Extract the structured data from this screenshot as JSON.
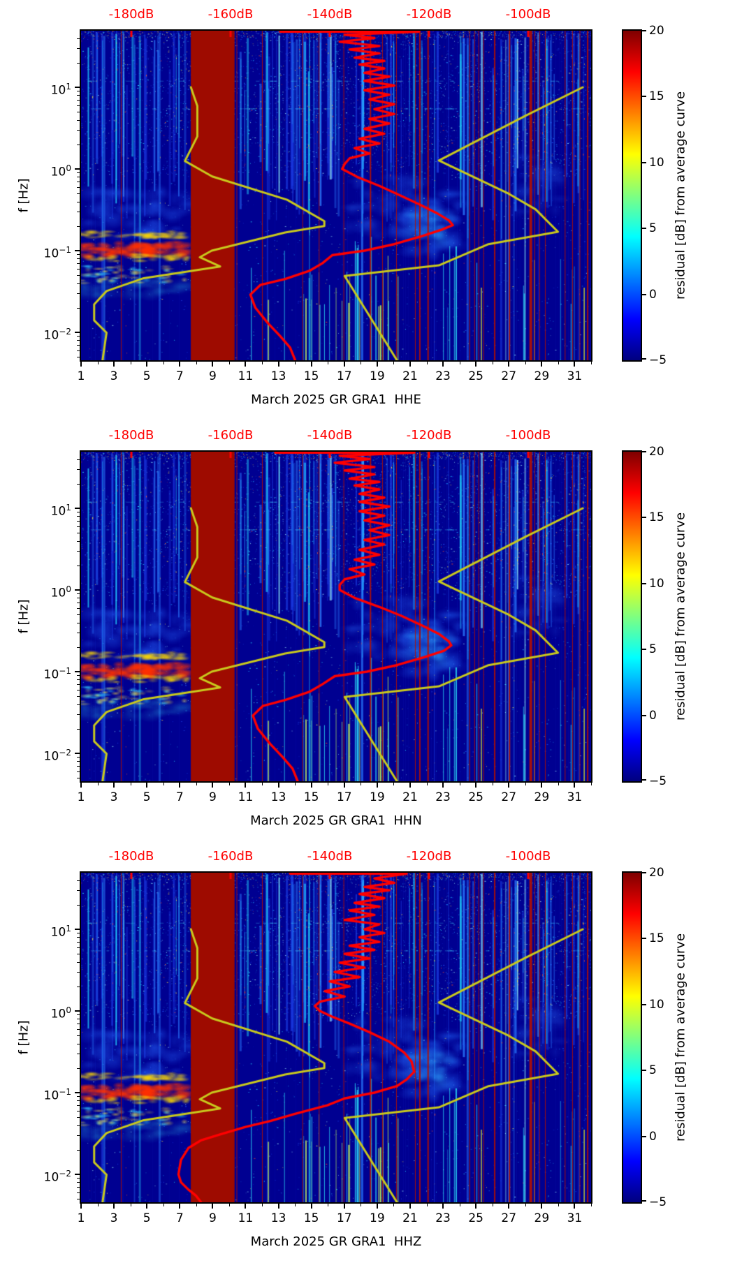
{
  "figure_background": "#ffffff",
  "chart_data": {
    "type": "heatmap",
    "description": "Three stacked seismic PSD-residual spectrograms (station GR GRA1, channels HHE/HHN/HHZ, March 2025). Heatmap shows residual [dB] from average curve vs day-of-month (x) and frequency (y, log). Yellow lines are Peterson NLNM/NHNM noise models, red line is the station median PSD, both plotted against the red top dB axis.",
    "shared": {
      "x_axis": {
        "range_days": [
          1,
          32
        ],
        "major_tick_days": [
          1,
          3,
          5,
          7,
          9,
          11,
          13,
          15,
          17,
          19,
          21,
          23,
          25,
          27,
          29,
          31
        ],
        "major_tick_labels": [
          "1",
          "3",
          "5",
          "7",
          "9",
          "11",
          "13",
          "15",
          "17",
          "19",
          "21",
          "23",
          "25",
          "27",
          "29",
          "31"
        ],
        "minor_tick_days": [
          2,
          4,
          6,
          8,
          10,
          12,
          14,
          16,
          18,
          20,
          22,
          24,
          26,
          28,
          30,
          32
        ]
      },
      "y_axis": {
        "label": "f [Hz]",
        "range_hz": [
          0.0046,
          51
        ],
        "major_ticks": [
          {
            "value_hz": 10,
            "base": "10",
            "exp": "1"
          },
          {
            "value_hz": 1,
            "base": "10",
            "exp": "0"
          },
          {
            "value_hz": 0.1,
            "base": "10",
            "exp": "−1"
          },
          {
            "value_hz": 0.01,
            "base": "10",
            "exp": "−2"
          }
        ]
      },
      "top_axis": {
        "color": "#ff0000",
        "range_db": [
          -190.1,
          -87.3
        ],
        "tick_values_db": [
          -180,
          -160,
          -140,
          -120,
          -100
        ],
        "tick_labels": [
          "-180dB",
          "-160dB",
          "-140dB",
          "-120dB",
          "-100dB"
        ]
      },
      "colorbar": {
        "label": "residual [dB] from average curve",
        "range": [
          -5,
          20
        ],
        "tick_values": [
          20,
          15,
          10,
          5,
          0,
          -5
        ],
        "tick_labels": [
          "20",
          "15",
          "10",
          "5",
          "0",
          "−5"
        ],
        "colormap": "jet",
        "gradient_stops": [
          [
            0,
            "#7f0000"
          ],
          [
            0.125,
            "#ff0000"
          ],
          [
            0.375,
            "#ffff00"
          ],
          [
            0.625,
            "#00ffff"
          ],
          [
            0.875,
            "#0000ff"
          ],
          [
            1,
            "#00007f"
          ]
        ]
      },
      "noise_models": {
        "color": "#c9c91d",
        "nlnm_db_by_freq": [
          [
            10,
            -168
          ],
          [
            5.9,
            -166.7
          ],
          [
            2.5,
            -166.7
          ],
          [
            1.25,
            -169.2
          ],
          [
            0.81,
            -163.7
          ],
          [
            0.42,
            -148.6
          ],
          [
            0.23,
            -141.1
          ],
          [
            0.2,
            -141.1
          ],
          [
            0.167,
            -149.0
          ],
          [
            0.1,
            -163.8
          ],
          [
            0.083,
            -166.2
          ],
          [
            0.064,
            -162.1
          ],
          [
            0.046,
            -177.5
          ],
          [
            0.032,
            -185.0
          ],
          [
            0.022,
            -187.5
          ],
          [
            0.014,
            -187.5
          ],
          [
            0.0099,
            -185.0
          ],
          [
            0.0046,
            -185.8
          ]
        ],
        "nhnm_db_by_freq": [
          [
            10,
            -89
          ],
          [
            4.5,
            -100.5
          ],
          [
            1.27,
            -118
          ],
          [
            0.5,
            -104
          ],
          [
            0.32,
            -98.5
          ],
          [
            0.17,
            -94
          ],
          [
            0.12,
            -108
          ],
          [
            0.066,
            -118
          ],
          [
            0.049,
            -137
          ],
          [
            0.0046,
            -126.5
          ]
        ]
      },
      "median_color": "#ff0000"
    },
    "features": {
      "texture_seed": 774421,
      "base_color": "#000091",
      "gap_band_days": [
        7.67,
        10.33
      ],
      "gap_color": "#9e0b00",
      "speckle_palette": [
        "#1030d8",
        "#2256ff",
        "#1fa8ff",
        "#27e0ff",
        "#9ef4ff"
      ],
      "speckle_warm": [
        "#ffe83c",
        "#ff5026"
      ],
      "stripe_colors": [
        "#1a3ae0",
        "#2a7bff",
        "#22d4ff",
        "#93f4ff"
      ],
      "red_line_color": "#b40f00",
      "red_line_days": [
        3.42,
        10.45,
        12.0,
        14.45,
        15.45,
        16.95,
        18.55,
        19.3,
        20.15,
        21.3,
        21.55,
        22.05,
        24.6,
        24.9,
        25.15,
        25.45,
        26.1,
        27.0,
        28.25,
        28.55,
        28.85,
        29.2,
        30.4,
        30.85,
        31.3,
        31.75
      ],
      "yellow_line_days": [
        25.3,
        31.55
      ],
      "yellow_line_color": "#d8e22a",
      "hot_band": {
        "days": [
          1,
          7.6
        ],
        "freq_hz": [
          0.09,
          0.145
        ],
        "core_color": "#ff2f00",
        "fringe_color": "#ffd900"
      },
      "secondary_band": {
        "days": [
          1,
          7.6
        ],
        "freq_hz": [
          0.04,
          0.065
        ],
        "colors": [
          "#ffe43a",
          "#35d8ff"
        ]
      },
      "clouds": [
        {
          "days": [
            1,
            7.7
          ],
          "freq_hz": [
            0.14,
            0.55
          ],
          "color": "#1e52e8",
          "alpha": 0.34,
          "n": 60
        },
        {
          "days": [
            1,
            7.7
          ],
          "freq_hz": [
            0.028,
            0.045
          ],
          "color": "#2fc8f0",
          "alpha": 0.2,
          "n": 28
        },
        {
          "days": [
            17.3,
            21.6
          ],
          "freq_hz": [
            0.15,
            0.8
          ],
          "color": "#1c49d8",
          "alpha": 0.3,
          "n": 55
        },
        {
          "days": [
            20.8,
            24.2
          ],
          "freq_hz": [
            0.09,
            0.5
          ],
          "color": "#1e5df0",
          "alpha": 0.34,
          "n": 55
        },
        {
          "days": [
            21.0,
            23.4
          ],
          "freq_hz": [
            0.12,
            0.3
          ],
          "color": "#2ea8ff",
          "alpha": 0.28,
          "n": 30
        },
        {
          "days": [
            27.4,
            30.2
          ],
          "freq_hz": [
            0.3,
            1.6
          ],
          "color": "#1c49d8",
          "alpha": 0.22,
          "n": 40
        }
      ],
      "horizontal_rows_hz": [
        5.5,
        12
      ]
    },
    "charts": [
      {
        "channel": "HHE",
        "title": "March 2025 GR GRA1  HHE",
        "median_db_by_freq": [
          [
            48,
            -150
          ],
          [
            48,
            -122
          ],
          [
            44,
            -137
          ],
          [
            40,
            -131
          ],
          [
            36,
            -138
          ],
          [
            32,
            -130
          ],
          [
            29,
            -136
          ],
          [
            26,
            -130
          ],
          [
            23,
            -135
          ],
          [
            21,
            -129
          ],
          [
            19,
            -134
          ],
          [
            17,
            -129
          ],
          [
            15,
            -133
          ],
          [
            13.5,
            -128
          ],
          [
            12,
            -133
          ],
          [
            10.5,
            -127
          ],
          [
            9.2,
            -133
          ],
          [
            8.1,
            -128
          ],
          [
            7.1,
            -132
          ],
          [
            6.2,
            -127
          ],
          [
            5.4,
            -131
          ],
          [
            4.7,
            -127
          ],
          [
            4.1,
            -132
          ],
          [
            3.6,
            -128
          ],
          [
            3.1,
            -133
          ],
          [
            2.7,
            -129
          ],
          [
            2.35,
            -134
          ],
          [
            2.05,
            -130
          ],
          [
            1.8,
            -135
          ],
          [
            1.55,
            -132
          ],
          [
            1.35,
            -136
          ],
          [
            1.15,
            -137
          ],
          [
            1.0,
            -137.5
          ],
          [
            0.8,
            -134.5
          ],
          [
            0.62,
            -130
          ],
          [
            0.48,
            -126
          ],
          [
            0.37,
            -122
          ],
          [
            0.29,
            -118.5
          ],
          [
            0.235,
            -116
          ],
          [
            0.205,
            -115.2
          ],
          [
            0.18,
            -117.5
          ],
          [
            0.15,
            -121.5
          ],
          [
            0.12,
            -127
          ],
          [
            0.1,
            -133
          ],
          [
            0.088,
            -139.5
          ],
          [
            0.07,
            -141.5
          ],
          [
            0.057,
            -144
          ],
          [
            0.045,
            -149
          ],
          [
            0.038,
            -154
          ],
          [
            0.029,
            -156
          ],
          [
            0.02,
            -155
          ],
          [
            0.013,
            -152.5
          ],
          [
            0.009,
            -150
          ],
          [
            0.0065,
            -148
          ],
          [
            0.0046,
            -147
          ]
        ]
      },
      {
        "channel": "HHN",
        "title": "March 2025 GR GRA1  HHN",
        "median_db_by_freq": [
          [
            48,
            -151
          ],
          [
            48,
            -123
          ],
          [
            44,
            -138
          ],
          [
            40,
            -132
          ],
          [
            36,
            -139
          ],
          [
            32,
            -131
          ],
          [
            29,
            -137
          ],
          [
            26,
            -131
          ],
          [
            23,
            -136
          ],
          [
            21,
            -130
          ],
          [
            19,
            -135
          ],
          [
            17,
            -130
          ],
          [
            15,
            -134
          ],
          [
            13.5,
            -129
          ],
          [
            12,
            -134
          ],
          [
            10.5,
            -128
          ],
          [
            9.2,
            -134
          ],
          [
            8.1,
            -129
          ],
          [
            7.1,
            -133
          ],
          [
            6.2,
            -128
          ],
          [
            5.4,
            -132
          ],
          [
            4.7,
            -128
          ],
          [
            4.1,
            -133
          ],
          [
            3.6,
            -129
          ],
          [
            3.1,
            -134
          ],
          [
            2.7,
            -130
          ],
          [
            2.35,
            -135
          ],
          [
            2.05,
            -131
          ],
          [
            1.8,
            -136
          ],
          [
            1.55,
            -133
          ],
          [
            1.35,
            -137
          ],
          [
            1.15,
            -138
          ],
          [
            1.0,
            -138
          ],
          [
            0.8,
            -135
          ],
          [
            0.62,
            -130
          ],
          [
            0.48,
            -125.5
          ],
          [
            0.37,
            -121.5
          ],
          [
            0.29,
            -118
          ],
          [
            0.235,
            -116
          ],
          [
            0.21,
            -115.5
          ],
          [
            0.18,
            -117
          ],
          [
            0.15,
            -121
          ],
          [
            0.12,
            -126.5
          ],
          [
            0.1,
            -132.5
          ],
          [
            0.088,
            -139
          ],
          [
            0.07,
            -141.5
          ],
          [
            0.057,
            -144
          ],
          [
            0.045,
            -149
          ],
          [
            0.038,
            -153.5
          ],
          [
            0.029,
            -155.5
          ],
          [
            0.02,
            -154.5
          ],
          [
            0.013,
            -152
          ],
          [
            0.009,
            -149.5
          ],
          [
            0.0065,
            -147.5
          ],
          [
            0.0046,
            -146.5
          ]
        ]
      },
      {
        "channel": "HHZ",
        "title": "March 2025 GR GRA1  HHZ",
        "median_db_by_freq": [
          [
            48,
            -148
          ],
          [
            48,
            -124.5
          ],
          [
            42,
            -131
          ],
          [
            37,
            -127
          ],
          [
            33,
            -133
          ],
          [
            30,
            -128
          ],
          [
            27,
            -134
          ],
          [
            24,
            -129
          ],
          [
            21,
            -135
          ],
          [
            19,
            -130
          ],
          [
            17,
            -136
          ],
          [
            15,
            -131
          ],
          [
            13,
            -137
          ],
          [
            11.5,
            -130
          ],
          [
            10,
            -133
          ],
          [
            9,
            -129
          ],
          [
            8,
            -134
          ],
          [
            7,
            -130
          ],
          [
            6.3,
            -136
          ],
          [
            5.6,
            -131
          ],
          [
            5,
            -137
          ],
          [
            4.4,
            -132
          ],
          [
            3.9,
            -138
          ],
          [
            3.4,
            -133
          ],
          [
            3.0,
            -139
          ],
          [
            2.6,
            -134
          ],
          [
            2.3,
            -140
          ],
          [
            2.0,
            -136
          ],
          [
            1.75,
            -141
          ],
          [
            1.5,
            -137
          ],
          [
            1.3,
            -142
          ],
          [
            1.15,
            -143
          ],
          [
            1.0,
            -142
          ],
          [
            0.85,
            -139.5
          ],
          [
            0.7,
            -136
          ],
          [
            0.55,
            -132
          ],
          [
            0.42,
            -128
          ],
          [
            0.31,
            -125
          ],
          [
            0.24,
            -123.5
          ],
          [
            0.18,
            -123
          ],
          [
            0.145,
            -124.5
          ],
          [
            0.12,
            -126.5
          ],
          [
            0.1,
            -131
          ],
          [
            0.085,
            -137
          ],
          [
            0.07,
            -140.5
          ],
          [
            0.055,
            -147
          ],
          [
            0.045,
            -152
          ],
          [
            0.038,
            -157
          ],
          [
            0.031,
            -162
          ],
          [
            0.026,
            -166
          ],
          [
            0.021,
            -168.5
          ],
          [
            0.015,
            -170
          ],
          [
            0.01,
            -170.5
          ],
          [
            0.008,
            -170
          ],
          [
            0.0065,
            -168.5
          ],
          [
            0.0055,
            -167
          ],
          [
            0.0046,
            -166
          ]
        ]
      }
    ]
  }
}
